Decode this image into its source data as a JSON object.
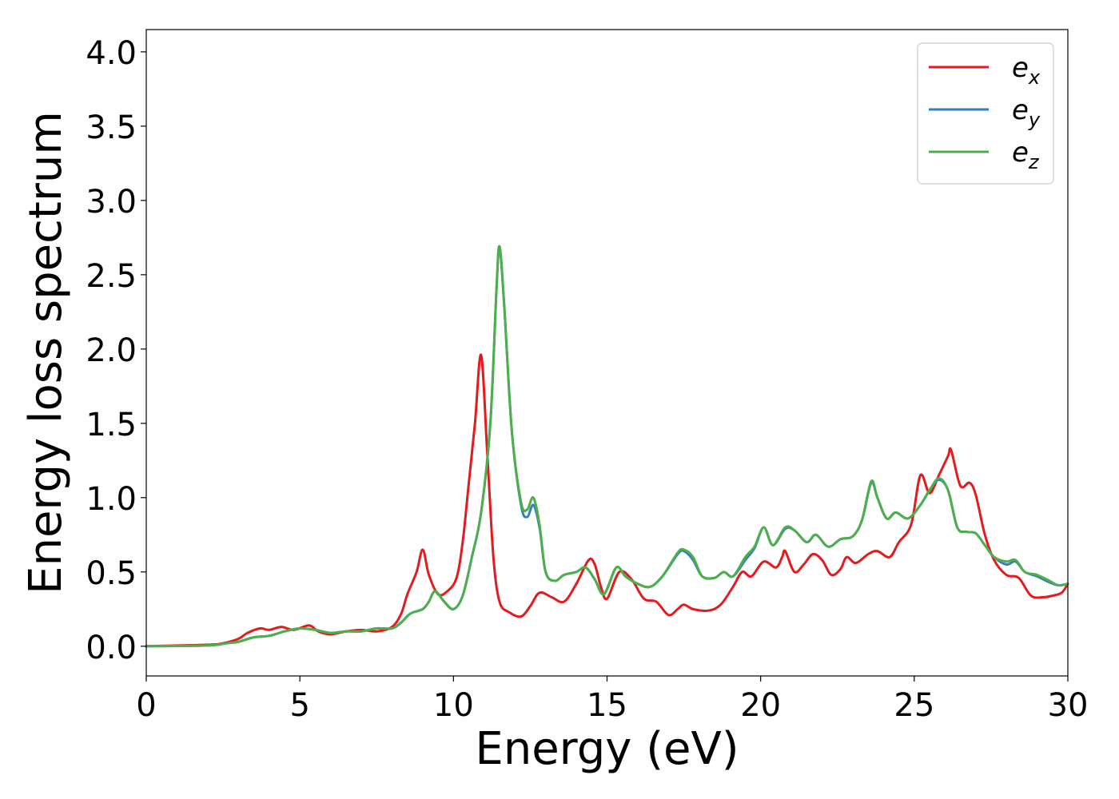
{
  "chart_data": {
    "type": "line",
    "title": "",
    "xlabel": "Energy (eV)",
    "ylabel": "Energy loss spectrum",
    "xlim": [
      0,
      30
    ],
    "ylim": [
      -0.2,
      4.15
    ],
    "xticks": [
      0,
      5,
      10,
      15,
      20,
      25,
      30
    ],
    "xtick_labels": [
      "0",
      "5",
      "10",
      "15",
      "20",
      "25",
      "30"
    ],
    "yticks": [
      0.0,
      0.5,
      1.0,
      1.5,
      2.0,
      2.5,
      3.0,
      3.5,
      4.0
    ],
    "ytick_labels": [
      "0.0",
      "0.5",
      "1.0",
      "1.5",
      "2.0",
      "2.5",
      "3.0",
      "3.5",
      "4.0"
    ],
    "grid": false,
    "legend_position": "top-right",
    "series": [
      {
        "name": "e",
        "subscript": "x",
        "color": "#e41a1c",
        "points": [
          [
            0,
            0
          ],
          [
            2,
            0.01
          ],
          [
            2.5,
            0.02
          ],
          [
            3,
            0.05
          ],
          [
            3.3,
            0.09
          ],
          [
            3.7,
            0.12
          ],
          [
            4,
            0.11
          ],
          [
            4.4,
            0.13
          ],
          [
            4.8,
            0.11
          ],
          [
            5.3,
            0.14
          ],
          [
            5.6,
            0.1
          ],
          [
            6,
            0.08
          ],
          [
            6.5,
            0.1
          ],
          [
            7,
            0.11
          ],
          [
            7.5,
            0.1
          ],
          [
            8,
            0.13
          ],
          [
            8.3,
            0.22
          ],
          [
            8.5,
            0.35
          ],
          [
            8.8,
            0.5
          ],
          [
            9,
            0.65
          ],
          [
            9.2,
            0.48
          ],
          [
            9.5,
            0.35
          ],
          [
            9.8,
            0.37
          ],
          [
            10.1,
            0.46
          ],
          [
            10.3,
            0.7
          ],
          [
            10.5,
            1.1
          ],
          [
            10.7,
            1.5
          ],
          [
            10.9,
            1.96
          ],
          [
            11.1,
            1.3
          ],
          [
            11.3,
            0.6
          ],
          [
            11.5,
            0.3
          ],
          [
            11.8,
            0.23
          ],
          [
            12.2,
            0.2
          ],
          [
            12.5,
            0.27
          ],
          [
            12.8,
            0.36
          ],
          [
            13.2,
            0.33
          ],
          [
            13.6,
            0.3
          ],
          [
            14,
            0.42
          ],
          [
            14.4,
            0.58
          ],
          [
            14.6,
            0.55
          ],
          [
            14.8,
            0.4
          ],
          [
            15,
            0.32
          ],
          [
            15.4,
            0.5
          ],
          [
            15.8,
            0.45
          ],
          [
            16.2,
            0.32
          ],
          [
            16.6,
            0.3
          ],
          [
            17,
            0.21
          ],
          [
            17.3,
            0.25
          ],
          [
            17.5,
            0.28
          ],
          [
            17.8,
            0.25
          ],
          [
            18.3,
            0.24
          ],
          [
            18.7,
            0.28
          ],
          [
            19.1,
            0.4
          ],
          [
            19.4,
            0.5
          ],
          [
            19.7,
            0.47
          ],
          [
            20.1,
            0.57
          ],
          [
            20.5,
            0.53
          ],
          [
            20.7,
            0.6
          ],
          [
            20.8,
            0.64
          ],
          [
            21.1,
            0.5
          ],
          [
            21.4,
            0.55
          ],
          [
            21.7,
            0.62
          ],
          [
            22,
            0.58
          ],
          [
            22.3,
            0.48
          ],
          [
            22.6,
            0.52
          ],
          [
            22.8,
            0.6
          ],
          [
            23.1,
            0.56
          ],
          [
            23.5,
            0.62
          ],
          [
            23.8,
            0.64
          ],
          [
            24.2,
            0.6
          ],
          [
            24.5,
            0.7
          ],
          [
            24.9,
            0.82
          ],
          [
            25.2,
            1.15
          ],
          [
            25.5,
            1.03
          ],
          [
            25.8,
            1.15
          ],
          [
            26.1,
            1.28
          ],
          [
            26.2,
            1.32
          ],
          [
            26.5,
            1.08
          ],
          [
            26.8,
            1.1
          ],
          [
            27,
            1.02
          ],
          [
            27.3,
            0.75
          ],
          [
            27.6,
            0.58
          ],
          [
            28,
            0.48
          ],
          [
            28.4,
            0.46
          ],
          [
            28.8,
            0.34
          ],
          [
            29.2,
            0.33
          ],
          [
            29.5,
            0.34
          ],
          [
            29.8,
            0.36
          ],
          [
            30,
            0.42
          ]
        ]
      },
      {
        "name": "e",
        "subscript": "y",
        "color": "#377eb8",
        "points": [
          [
            0,
            0
          ],
          [
            2,
            0.005
          ],
          [
            2.6,
            0.02
          ],
          [
            3,
            0.03
          ],
          [
            3.5,
            0.06
          ],
          [
            4,
            0.07
          ],
          [
            4.5,
            0.1
          ],
          [
            5,
            0.12
          ],
          [
            5.5,
            0.11
          ],
          [
            6,
            0.09
          ],
          [
            6.5,
            0.1
          ],
          [
            7,
            0.1
          ],
          [
            7.5,
            0.12
          ],
          [
            8,
            0.12
          ],
          [
            8.3,
            0.16
          ],
          [
            8.6,
            0.22
          ],
          [
            9,
            0.25
          ],
          [
            9.2,
            0.3
          ],
          [
            9.4,
            0.37
          ],
          [
            9.7,
            0.3
          ],
          [
            10,
            0.25
          ],
          [
            10.3,
            0.34
          ],
          [
            10.6,
            0.6
          ],
          [
            10.9,
            0.9
          ],
          [
            11.2,
            1.5
          ],
          [
            11.4,
            2.4
          ],
          [
            11.5,
            2.69
          ],
          [
            11.65,
            2.3
          ],
          [
            11.9,
            1.45
          ],
          [
            12.2,
            0.95
          ],
          [
            12.4,
            0.87
          ],
          [
            12.6,
            0.95
          ],
          [
            12.8,
            0.8
          ],
          [
            13,
            0.5
          ],
          [
            13.3,
            0.44
          ],
          [
            13.6,
            0.48
          ],
          [
            14,
            0.5
          ],
          [
            14.3,
            0.53
          ],
          [
            14.6,
            0.45
          ],
          [
            14.9,
            0.35
          ],
          [
            15.3,
            0.53
          ],
          [
            15.6,
            0.47
          ],
          [
            16,
            0.42
          ],
          [
            16.4,
            0.4
          ],
          [
            16.8,
            0.47
          ],
          [
            17.3,
            0.62
          ],
          [
            17.5,
            0.64
          ],
          [
            17.8,
            0.58
          ],
          [
            18.1,
            0.47
          ],
          [
            18.5,
            0.46
          ],
          [
            18.8,
            0.5
          ],
          [
            19.1,
            0.47
          ],
          [
            19.5,
            0.58
          ],
          [
            19.8,
            0.66
          ],
          [
            20.1,
            0.8
          ],
          [
            20.4,
            0.68
          ],
          [
            20.8,
            0.79
          ],
          [
            21.1,
            0.78
          ],
          [
            21.5,
            0.7
          ],
          [
            21.8,
            0.75
          ],
          [
            22.2,
            0.67
          ],
          [
            22.6,
            0.72
          ],
          [
            23,
            0.74
          ],
          [
            23.3,
            0.85
          ],
          [
            23.6,
            1.1
          ],
          [
            23.8,
            1.0
          ],
          [
            24.1,
            0.86
          ],
          [
            24.4,
            0.9
          ],
          [
            24.8,
            0.86
          ],
          [
            25.2,
            0.95
          ],
          [
            25.5,
            1.05
          ],
          [
            25.8,
            1.12
          ],
          [
            26.1,
            1.05
          ],
          [
            26.4,
            0.8
          ],
          [
            26.7,
            0.77
          ],
          [
            27,
            0.76
          ],
          [
            27.3,
            0.68
          ],
          [
            27.6,
            0.6
          ],
          [
            28,
            0.55
          ],
          [
            28.3,
            0.57
          ],
          [
            28.6,
            0.5
          ],
          [
            29,
            0.47
          ],
          [
            29.4,
            0.43
          ],
          [
            29.7,
            0.41
          ],
          [
            30,
            0.42
          ]
        ]
      },
      {
        "name": "e",
        "subscript": "z",
        "color": "#4daf4a",
        "points": [
          [
            0,
            0
          ],
          [
            2,
            0.005
          ],
          [
            2.6,
            0.02
          ],
          [
            3,
            0.03
          ],
          [
            3.5,
            0.06
          ],
          [
            4,
            0.07
          ],
          [
            4.5,
            0.1
          ],
          [
            5,
            0.12
          ],
          [
            5.5,
            0.11
          ],
          [
            6,
            0.09
          ],
          [
            6.5,
            0.1
          ],
          [
            7,
            0.1
          ],
          [
            7.5,
            0.12
          ],
          [
            8,
            0.12
          ],
          [
            8.3,
            0.16
          ],
          [
            8.6,
            0.22
          ],
          [
            9,
            0.25
          ],
          [
            9.2,
            0.3
          ],
          [
            9.4,
            0.37
          ],
          [
            9.7,
            0.3
          ],
          [
            10,
            0.25
          ],
          [
            10.3,
            0.34
          ],
          [
            10.6,
            0.6
          ],
          [
            10.9,
            0.9
          ],
          [
            11.2,
            1.5
          ],
          [
            11.4,
            2.4
          ],
          [
            11.5,
            2.69
          ],
          [
            11.65,
            2.3
          ],
          [
            11.9,
            1.45
          ],
          [
            12.2,
            0.97
          ],
          [
            12.4,
            0.92
          ],
          [
            12.6,
            1.0
          ],
          [
            12.8,
            0.82
          ],
          [
            13,
            0.5
          ],
          [
            13.3,
            0.44
          ],
          [
            13.6,
            0.48
          ],
          [
            14,
            0.5
          ],
          [
            14.3,
            0.53
          ],
          [
            14.6,
            0.45
          ],
          [
            14.9,
            0.35
          ],
          [
            15.3,
            0.53
          ],
          [
            15.6,
            0.47
          ],
          [
            16,
            0.42
          ],
          [
            16.4,
            0.4
          ],
          [
            16.8,
            0.47
          ],
          [
            17.3,
            0.63
          ],
          [
            17.5,
            0.65
          ],
          [
            17.8,
            0.6
          ],
          [
            18.1,
            0.47
          ],
          [
            18.5,
            0.46
          ],
          [
            18.8,
            0.5
          ],
          [
            19.1,
            0.47
          ],
          [
            19.5,
            0.6
          ],
          [
            19.8,
            0.67
          ],
          [
            20.1,
            0.8
          ],
          [
            20.4,
            0.68
          ],
          [
            20.8,
            0.8
          ],
          [
            21.1,
            0.78
          ],
          [
            21.5,
            0.7
          ],
          [
            21.8,
            0.75
          ],
          [
            22.2,
            0.67
          ],
          [
            22.6,
            0.72
          ],
          [
            23,
            0.74
          ],
          [
            23.3,
            0.85
          ],
          [
            23.6,
            1.11
          ],
          [
            23.8,
            1.0
          ],
          [
            24.1,
            0.86
          ],
          [
            24.4,
            0.9
          ],
          [
            24.8,
            0.86
          ],
          [
            25.2,
            0.95
          ],
          [
            25.5,
            1.05
          ],
          [
            25.8,
            1.13
          ],
          [
            26.1,
            1.05
          ],
          [
            26.4,
            0.8
          ],
          [
            26.7,
            0.77
          ],
          [
            27,
            0.76
          ],
          [
            27.3,
            0.68
          ],
          [
            27.6,
            0.6
          ],
          [
            28,
            0.57
          ],
          [
            28.3,
            0.58
          ],
          [
            28.6,
            0.5
          ],
          [
            29,
            0.48
          ],
          [
            29.4,
            0.44
          ],
          [
            29.7,
            0.41
          ],
          [
            30,
            0.42
          ]
        ]
      }
    ]
  }
}
